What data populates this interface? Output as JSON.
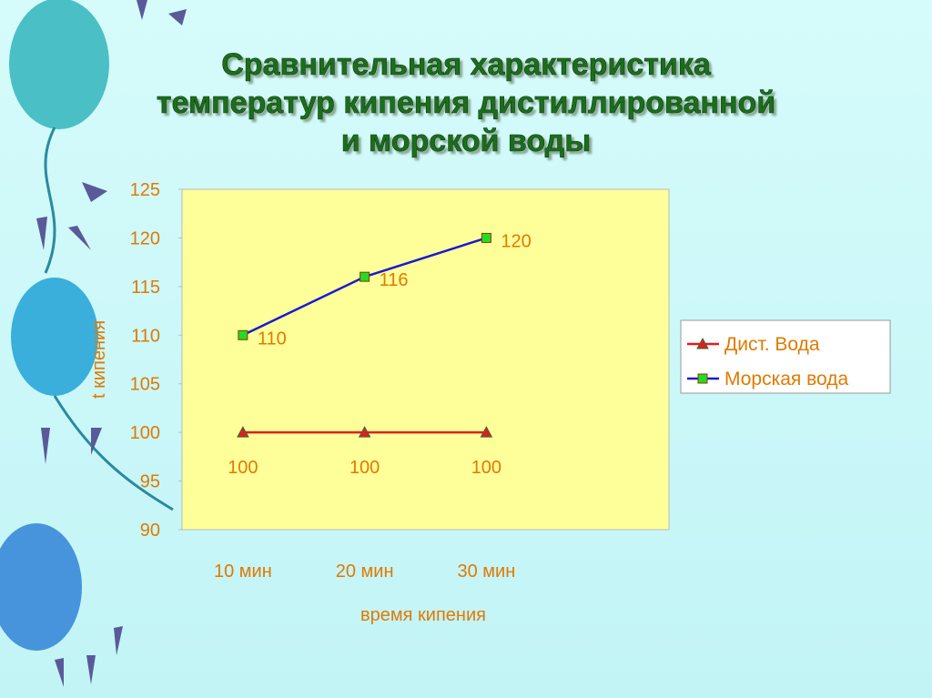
{
  "chart_data": {
    "type": "line",
    "title": [
      "Сравнительная характеристика",
      "температур кипения дистиллированной",
      "и морской воды"
    ],
    "categories": [
      "10 мин",
      "20 мин",
      "30 мин",
      null
    ],
    "series": [
      {
        "name": "Дист. Вода",
        "color": "#e01e1e",
        "marker": "triangle",
        "values": [
          100,
          100,
          100,
          null
        ]
      },
      {
        "name": "Морская вода",
        "color": "#1a1ad0",
        "marker": "square",
        "values": [
          110,
          116,
          120,
          null
        ]
      }
    ],
    "ylim": [
      90,
      125
    ],
    "yticks": [
      90,
      95,
      100,
      105,
      110,
      115,
      120,
      125
    ],
    "xlabel": "время кипения",
    "ylabel": "t кипения",
    "legend": "right",
    "plot_background": "#ffff99"
  }
}
